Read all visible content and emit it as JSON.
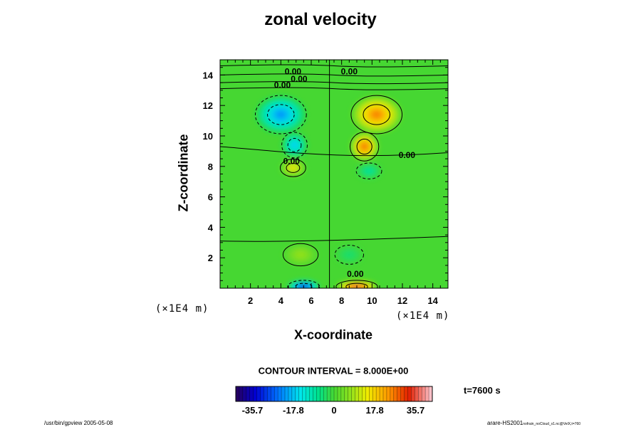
{
  "chart_data": {
    "type": "heatmap",
    "title": "zonal velocity",
    "xlabel": "X-coordinate",
    "ylabel": "Z-coordinate",
    "x_unit": "(×1E4 m)",
    "y_unit": "(×1E4 m)",
    "xlim": [
      0,
      15
    ],
    "ylim": [
      0,
      15
    ],
    "x_ticks": [
      2,
      4,
      6,
      8,
      10,
      12,
      14
    ],
    "y_ticks": [
      2,
      4,
      6,
      8,
      10,
      12,
      14
    ],
    "contour_interval_text": "CONTOUR INTERVAL = 8.000E+00",
    "contour_labels": [
      {
        "text": "0.00",
        "x": 4.8,
        "z": 14.2
      },
      {
        "text": "0.00",
        "x": 5.2,
        "z": 13.7
      },
      {
        "text": "0.00",
        "x": 4.1,
        "z": 13.3
      },
      {
        "text": "0.00",
        "x": 8.5,
        "z": 14.2
      },
      {
        "text": "0.00",
        "x": 12.3,
        "z": 8.7
      },
      {
        "text": "0.00",
        "x": 4.7,
        "z": 8.3
      },
      {
        "text": "0.00",
        "x": 8.9,
        "z": 0.9
      }
    ],
    "features": [
      {
        "x": 4.0,
        "z": 11.4,
        "value": -22,
        "rx": 1.6,
        "rz": 1.2
      },
      {
        "x": 10.3,
        "z": 11.4,
        "value": 26,
        "rx": 1.6,
        "rz": 1.2
      },
      {
        "x": 4.9,
        "z": 9.4,
        "value": -18,
        "rx": 0.8,
        "rz": 0.8
      },
      {
        "x": 9.5,
        "z": 9.3,
        "value": 28,
        "rx": 0.9,
        "rz": 0.9
      },
      {
        "x": 4.8,
        "z": 7.9,
        "value": 16,
        "rx": 0.8,
        "rz": 0.55
      },
      {
        "x": 9.8,
        "z": 7.7,
        "value": -9,
        "rx": 0.8,
        "rz": 0.5
      },
      {
        "x": 5.3,
        "z": 2.2,
        "value": 8,
        "rx": 1.1,
        "rz": 0.7
      },
      {
        "x": 8.5,
        "z": 2.2,
        "value": -5,
        "rx": 0.9,
        "rz": 0.6
      },
      {
        "x": 5.5,
        "z": 0.1,
        "value": -36,
        "rx": 1.0,
        "rz": 0.4
      },
      {
        "x": 9.0,
        "z": 0.1,
        "value": 36,
        "rx": 1.3,
        "rz": 0.4
      }
    ],
    "colorbar": {
      "min": -43,
      "max": 43,
      "tick_values": [
        -35.7,
        -17.8,
        0,
        17.8,
        35.7
      ],
      "tick_labels": [
        "-35.7",
        "-17.8",
        "0",
        "17.8",
        "35.7"
      ]
    },
    "grid": false,
    "legend": "colorbar bottom"
  },
  "time_text": "t=7600 s",
  "footer_left": "/usr/bin/gpview 2005-05-08",
  "footer_right_main": "arare-HS2001",
  "footer_right_small": "nofrain_noCloud_x1.nc@VelX,t=760"
}
